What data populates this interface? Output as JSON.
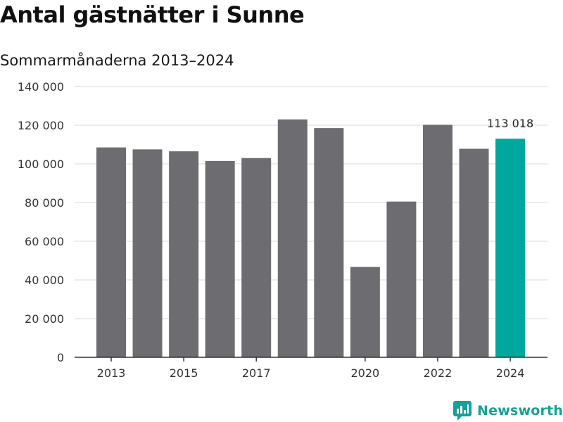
{
  "title": "Antal gästnätter i Sunne",
  "subtitle": "Sommarmånaderna 2013–2024",
  "brand": {
    "name": "Newsworthy",
    "icon": "newsworthy-logo-icon",
    "color": "#16a196"
  },
  "colors": {
    "bar": "#6d6c71",
    "highlight": "#00a79d",
    "grid": "#d9d9d9",
    "axis": "#333333"
  },
  "chart_data": {
    "type": "bar",
    "title": "Antal gästnätter i Sunne",
    "subtitle": "Sommarmånaderna 2013–2024",
    "categories": [
      "2013",
      "2014",
      "2015",
      "2016",
      "2017",
      "2018",
      "2019",
      "2020",
      "2021",
      "2022",
      "2023",
      "2024"
    ],
    "values": [
      108500,
      107500,
      106500,
      101500,
      103000,
      123000,
      118500,
      46700,
      80500,
      120200,
      107800,
      113018
    ],
    "x_tick_labels": [
      "2013",
      "2015",
      "2017",
      "2020",
      "2022",
      "2024"
    ],
    "y_ticks": [
      0,
      20000,
      40000,
      60000,
      80000,
      100000,
      120000,
      140000
    ],
    "y_tick_labels": [
      "0",
      "20 000",
      "40 000",
      "60 000",
      "80 000",
      "100 000",
      "120 000",
      "140 000"
    ],
    "ylim": [
      0,
      140000
    ],
    "highlight_category": "2024",
    "annotation": {
      "category": "2024",
      "text": "113 018"
    },
    "xlabel": "",
    "ylabel": "",
    "grid": true
  }
}
